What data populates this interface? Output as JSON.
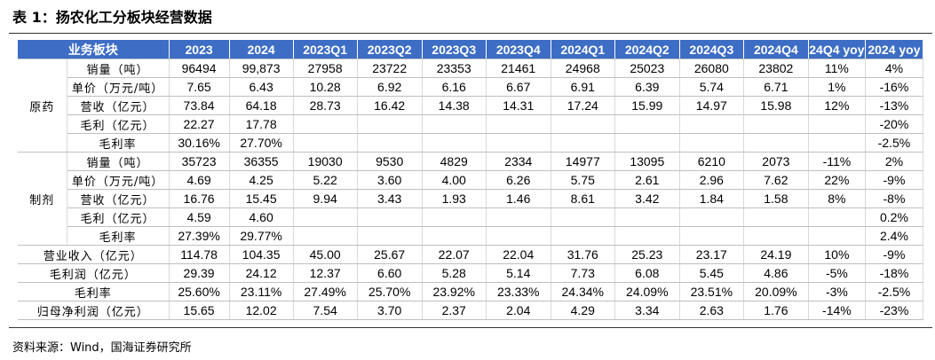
{
  "header": {
    "title": "表 1：扬农化工分板块经营数据"
  },
  "table": {
    "columns": [
      "业务板块",
      "2023",
      "2024",
      "2023Q1",
      "2023Q2",
      "2023Q3",
      "2023Q4",
      "2024Q1",
      "2024Q2",
      "2024Q3",
      "2024Q4",
      "24Q4 yoy",
      "2024 yoy"
    ],
    "sections": [
      {
        "name": "原药",
        "rows": [
          {
            "label": "销量（吨）",
            "cells": [
              "96494",
              "99,873",
              "27958",
              "23722",
              "23353",
              "21461",
              "24968",
              "25023",
              "26080",
              "23802",
              "11%",
              "4%"
            ]
          },
          {
            "label": "单价（万元/吨）",
            "cells": [
              "7.65",
              "6.43",
              "10.28",
              "6.92",
              "6.16",
              "6.67",
              "6.91",
              "6.39",
              "5.74",
              "6.71",
              "1%",
              "-16%"
            ]
          },
          {
            "label": "营收（亿元）",
            "cells": [
              "73.84",
              "64.18",
              "28.73",
              "16.42",
              "14.38",
              "14.31",
              "17.24",
              "15.99",
              "14.97",
              "15.98",
              "12%",
              "-13%"
            ]
          },
          {
            "label": "毛利（亿元）",
            "cells": [
              "22.27",
              "17.78",
              null,
              null,
              null,
              null,
              null,
              null,
              null,
              null,
              null,
              "-20%"
            ]
          },
          {
            "label": "毛利率",
            "cells": [
              "30.16%",
              "27.70%",
              null,
              null,
              null,
              null,
              null,
              null,
              null,
              null,
              null,
              "-2.5%"
            ]
          }
        ]
      },
      {
        "name": "制剂",
        "rows": [
          {
            "label": "销量（吨）",
            "cells": [
              "35723",
              "36355",
              "19030",
              "9530",
              "4829",
              "2334",
              "14977",
              "13095",
              "6210",
              "2073",
              "-11%",
              "2%"
            ]
          },
          {
            "label": "单价（万元/吨）",
            "cells": [
              "4.69",
              "4.25",
              "5.22",
              "3.60",
              "4.00",
              "6.26",
              "5.75",
              "2.61",
              "2.96",
              "7.62",
              "22%",
              "-9%"
            ]
          },
          {
            "label": "营收（亿元）",
            "cells": [
              "16.76",
              "15.45",
              "9.94",
              "3.43",
              "1.93",
              "1.46",
              "8.61",
              "3.42",
              "1.84",
              "1.58",
              "8%",
              "-8%"
            ]
          },
          {
            "label": "毛利（亿元）",
            "cells": [
              "4.59",
              "4.60",
              null,
              null,
              null,
              null,
              null,
              null,
              null,
              null,
              null,
              "0.2%"
            ]
          },
          {
            "label": "毛利率",
            "cells": [
              "27.39%",
              "29.77%",
              null,
              null,
              null,
              null,
              null,
              null,
              null,
              null,
              null,
              "2.4%"
            ]
          }
        ]
      }
    ],
    "totals": [
      {
        "label": "营业收入（亿元）",
        "cells": [
          "114.78",
          "104.35",
          "45.00",
          "25.67",
          "22.07",
          "22.04",
          "31.76",
          "25.23",
          "23.17",
          "24.19",
          "10%",
          "-9%"
        ]
      },
      {
        "label": "毛利润（亿元）",
        "cells": [
          "29.39",
          "24.12",
          "12.37",
          "6.60",
          "5.28",
          "5.14",
          "7.73",
          "6.08",
          "5.45",
          "4.86",
          "-5%",
          "-18%"
        ]
      },
      {
        "label": "毛利率",
        "cells": [
          "25.60%",
          "23.11%",
          "27.49%",
          "25.70%",
          "23.92%",
          "23.33%",
          "24.34%",
          "24.09%",
          "23.51%",
          "20.09%",
          "-3%",
          "-2.5%"
        ]
      },
      {
        "label": "归母净利润（亿元）",
        "cells": [
          "15.65",
          "12.02",
          "7.54",
          "3.70",
          "2.37",
          "2.04",
          "4.29",
          "3.34",
          "2.63",
          "1.76",
          "-14%",
          "-23%"
        ]
      }
    ]
  },
  "footer": {
    "source": "资料来源：Wind，国海证券研究所"
  }
}
